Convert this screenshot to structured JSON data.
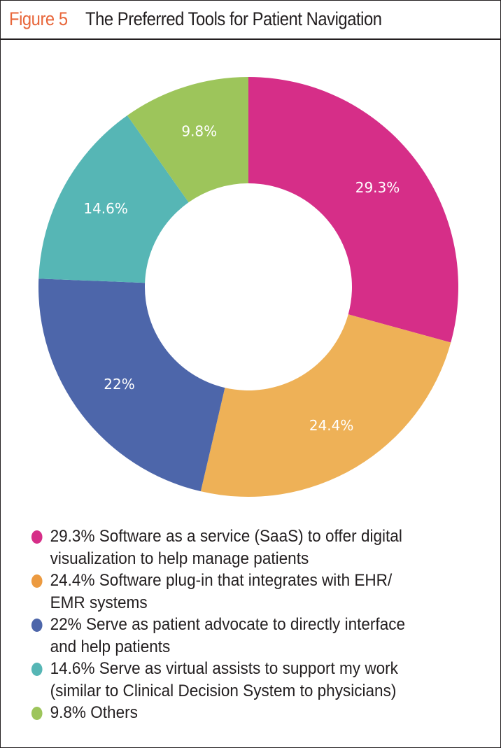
{
  "figure": {
    "number": "Figure 5",
    "title": "The Preferred Tools for Patient Navigation"
  },
  "chart_data": {
    "type": "pie",
    "variant": "donut",
    "title": "The Preferred Tools for Patient Navigation",
    "start": "12 o'clock, clockwise",
    "slices": [
      {
        "label": "29.3%",
        "value": 29.3,
        "color": "#d62e88",
        "legend": "29.3% Software as a service (SaaS) to offer digital visualization to help manage patients",
        "legend_lines": [
          "29.3% Software as a service (SaaS) to offer digital",
          "visualization to help manage patients"
        ]
      },
      {
        "label": "24.4%",
        "value": 24.4,
        "color": "#eeb157",
        "legend": "24.4% Software plug-in that integrates with EHR/ EMR systems",
        "legend_lines": [
          "24.4% Software plug-in that integrates with EHR/",
          "EMR systems"
        ]
      },
      {
        "label": "22%",
        "value": 22,
        "color": "#4d66aa",
        "legend": "22% Serve as patient advocate to directly interface and help patients",
        "legend_lines": [
          "22% Serve as patient advocate to directly interface",
          "and help patients"
        ]
      },
      {
        "label": "14.6%",
        "value": 14.6,
        "color": "#56b6b5",
        "legend": "14.6% Serve as virtual assists to support my work (similar to Clinical Decision System to physicians)",
        "legend_lines": [
          "14.6% Serve as virtual assists to support my work",
          "(similar to Clinical Decision System to physicians)"
        ]
      },
      {
        "label": "9.8%",
        "value": 9.8,
        "color": "#9dc55b",
        "legend": "9.8% Others",
        "legend_lines": [
          "9.8% Others"
        ]
      }
    ],
    "legend_position": "bottom"
  },
  "legend_dot_colors": [
    "#d62e88",
    "#ec9a40",
    "#4d66aa",
    "#56b6b5",
    "#9dc55b"
  ]
}
